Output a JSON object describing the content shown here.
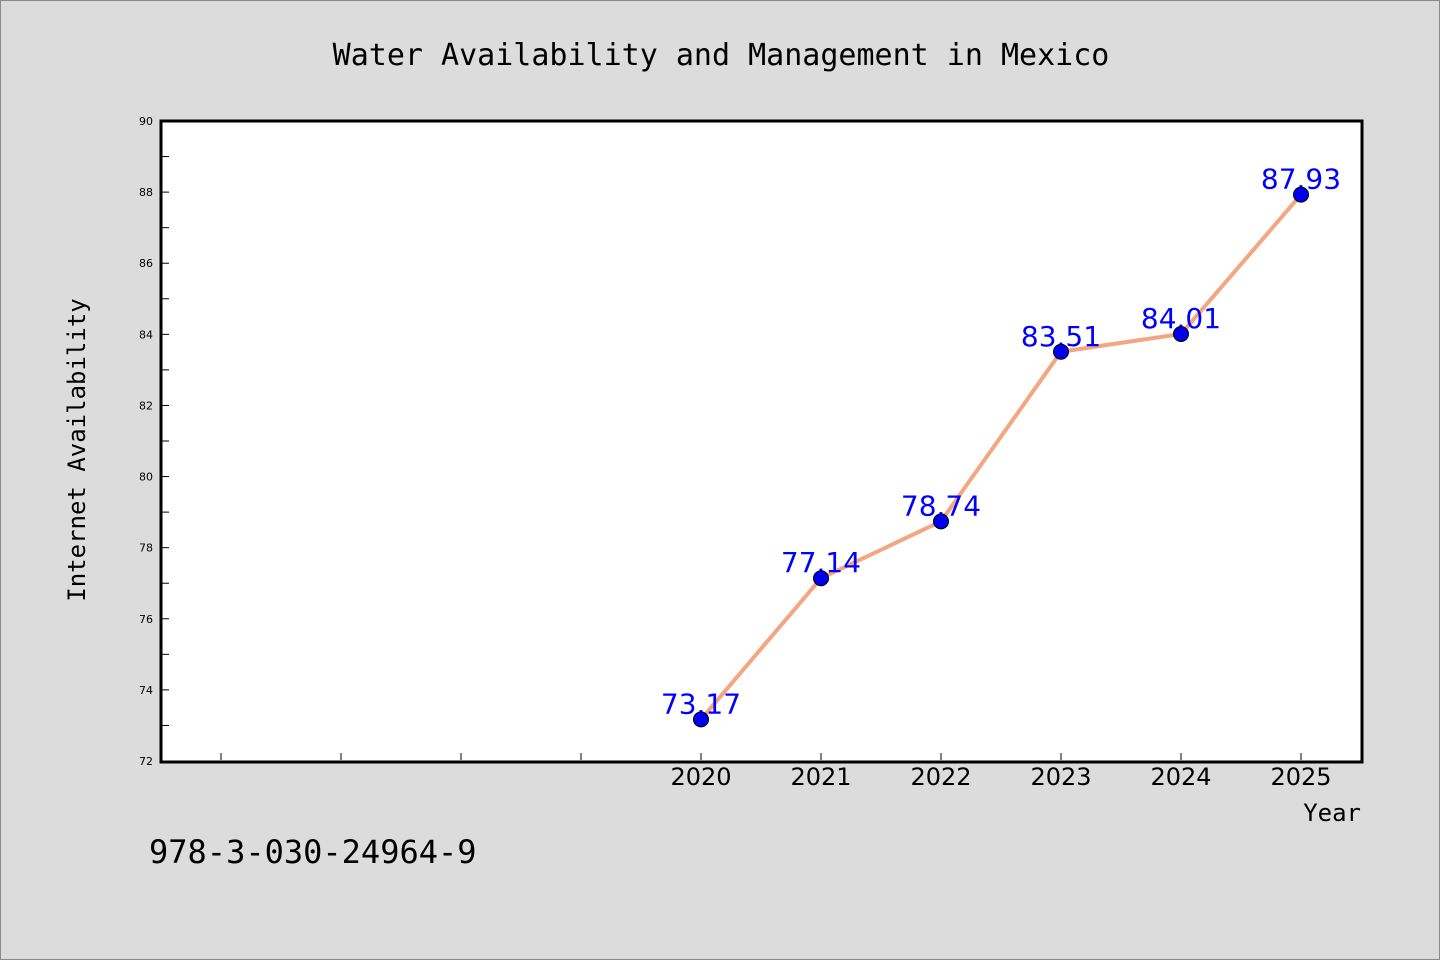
{
  "chart_data": {
    "type": "line",
    "title": "Water Availability and Management in Mexico",
    "xlabel": "Year",
    "ylabel": "Internet Availability",
    "x": [
      2020,
      2021,
      2022,
      2023,
      2024,
      2025
    ],
    "x_tick_labels": [
      "2020",
      "2021",
      "2022",
      "2023",
      "2024",
      "2025"
    ],
    "x_minor_ticks": [
      2016,
      2017,
      2018,
      2019
    ],
    "xlim": [
      2015.5,
      2025.5
    ],
    "y_ticks": [
      72,
      74,
      76,
      78,
      80,
      82,
      84,
      86,
      88,
      90
    ],
    "ylim": [
      72,
      90
    ],
    "grid": false,
    "series": [
      {
        "values": [
          73.17,
          77.14,
          78.74,
          83.51,
          84.01,
          87.93
        ],
        "labels": [
          "73.17",
          "77.14",
          "78.74",
          "83.51",
          "84.01",
          "87.93"
        ],
        "line_color": "#f4a582",
        "marker_color": "#0000ee",
        "label_color": "#0000ff"
      }
    ]
  },
  "footer": {
    "isbn": "978-3-030-24964-9"
  }
}
